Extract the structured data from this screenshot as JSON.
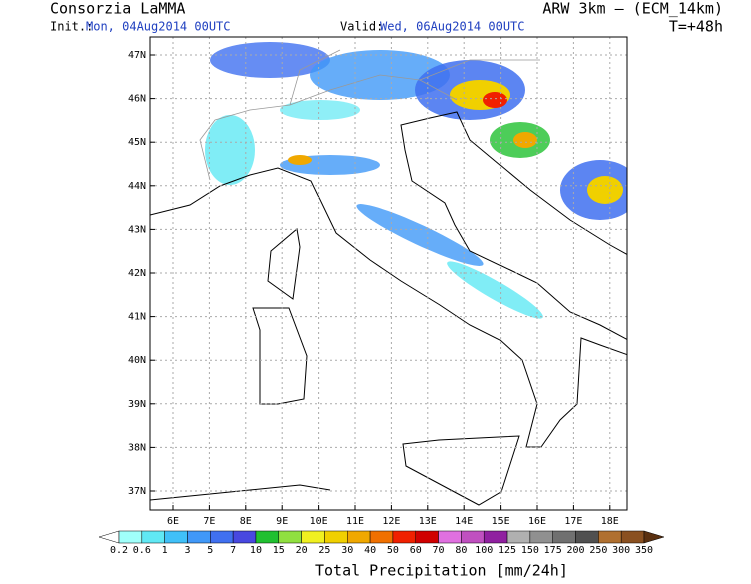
{
  "header": {
    "title": "Consorzia LaMMA",
    "init_label": "Init.:",
    "init_time": "Mon, 04Aug2014 00UTC",
    "model": "ARW 3km – (ECM_14km)",
    "valid_label": "Valid:",
    "valid_time": "Wed, 06Aug2014 00UTC",
    "lead_time": "T=+48h"
  },
  "map": {
    "lat_labels": [
      "47N",
      "46N",
      "45N",
      "44N",
      "43N",
      "42N",
      "41N",
      "40N",
      "39N",
      "38N",
      "37N"
    ],
    "lon_labels": [
      "6E",
      "7E",
      "8E",
      "9E",
      "10E",
      "11E",
      "12E",
      "13E",
      "14E",
      "15E",
      "16E",
      "17E",
      "18E"
    ]
  },
  "colorbar": {
    "labels": [
      "0.2",
      "0.6",
      "1",
      "3",
      "5",
      "7",
      "10",
      "15",
      "20",
      "25",
      "30",
      "40",
      "50",
      "60",
      "70",
      "80",
      "100",
      "125",
      "150",
      "175",
      "200",
      "250",
      "300",
      "350"
    ],
    "colors": [
      "#ffffff",
      "#a0fffa",
      "#60e8f4",
      "#40c0f8",
      "#4098f8",
      "#4070f0",
      "#4848e0",
      "#20c030",
      "#90e040",
      "#f0f020",
      "#f0d000",
      "#f0a800",
      "#f07000",
      "#f02000",
      "#d00000",
      "#e070e0",
      "#c050c0",
      "#9020a0",
      "#b0b0b0",
      "#909090",
      "#707070",
      "#505050",
      "#b07030",
      "#8a5020",
      "#5a3010"
    ],
    "title": "Total Precipitation [mm/24h]"
  }
}
